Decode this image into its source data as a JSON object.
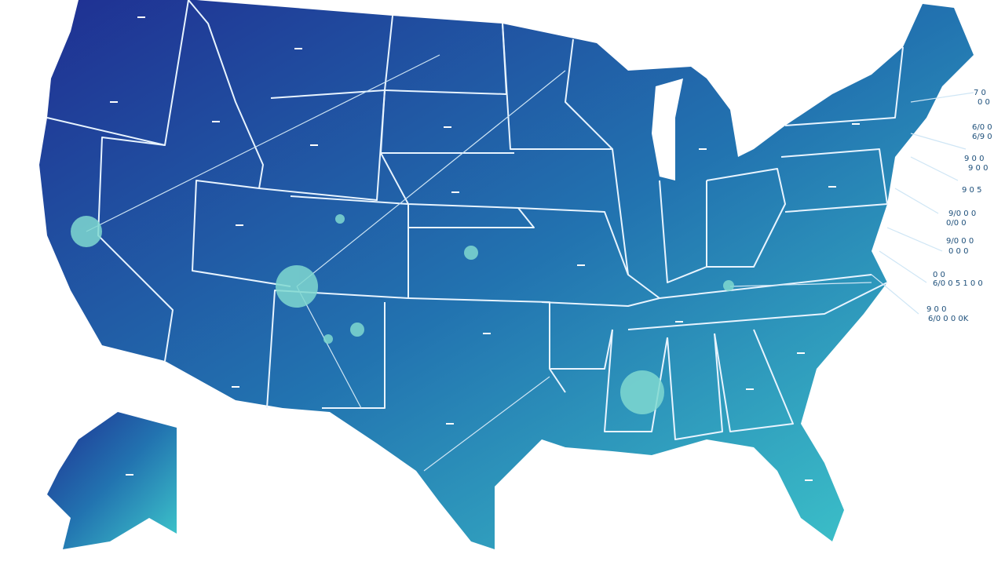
{
  "callout_labels": [
    "7 0",
    "0 0",
    "6/0 0",
    "6/9 0",
    "9 0 0",
    "9 0 0",
    "9 0 5",
    "9/0 0 0",
    "0/0 0",
    "9/0 0 0",
    "0 0 0",
    "0 0",
    "6/0 0 5 1 0 0",
    "9 0 0",
    "6/0 0 0 0K"
  ]
}
